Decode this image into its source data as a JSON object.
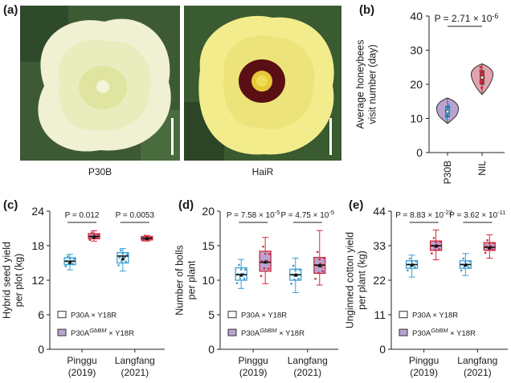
{
  "panels": {
    "a": "(a)",
    "b": "(b)",
    "c": "(c)",
    "d": "(d)",
    "e": "(e)"
  },
  "photos": [
    {
      "caption": "P30B",
      "petal": "#eeeecb",
      "center": "#dfe4a0",
      "bg": "#3d5a35"
    },
    {
      "caption": "HaiR",
      "petal": "#f1ea82",
      "center": "#5a0f15",
      "bg": "#3a5a30"
    }
  ],
  "colors": {
    "blue": "#3a9fd2",
    "red": "#d42a3b",
    "purple": "#b9a3d0",
    "violin_red": "#e2a2ae"
  },
  "chart_data": [
    {
      "type": "violin",
      "ylabel": "Average honeybees\nvisit number (day)",
      "ylim": [
        0,
        40
      ],
      "yticks": [
        "0",
        "10",
        "20",
        "30",
        "40"
      ],
      "categories": [
        "P30B",
        "NIL"
      ],
      "p_value": {
        "text": "P = 2.71 × 10",
        "sup": "-6"
      },
      "series": [
        {
          "name": "P30B",
          "median": 12,
          "q1": 10.5,
          "q3": 13.5,
          "min": 8.5,
          "max": 16,
          "points": [
            10,
            11,
            12,
            13,
            14,
            12.5,
            11.5
          ]
        },
        {
          "name": "NIL",
          "median": 22,
          "q1": 20,
          "q3": 24,
          "min": 17,
          "max": 26,
          "points": [
            19,
            21,
            22,
            23,
            24,
            25,
            20.5
          ]
        }
      ]
    },
    {
      "type": "box",
      "ylabel": "Hybrid seed yield\nper plot (kg)",
      "ylim": [
        0,
        24
      ],
      "yticks": [
        "0",
        "6",
        "12",
        "18",
        "24"
      ],
      "categories": [
        "Pinggu\n(2019)",
        "Langfang\n(2021)"
      ],
      "p_values": [
        "P = 0.012",
        "P = 0.0053"
      ],
      "legend": [
        "P30A × Y18R",
        "P30A",
        "GbBM",
        " × Y18R"
      ],
      "series": [
        {
          "name": "P30A × Y18R",
          "groups": [
            {
              "median": 15.3,
              "q1": 14.7,
              "q3": 15.9,
              "min": 13.8,
              "max": 16.5,
              "mean": 15.2
            },
            {
              "median": 16.2,
              "q1": 15.0,
              "q3": 16.8,
              "min": 13.6,
              "max": 17.5,
              "mean": 15.8
            }
          ]
        },
        {
          "name": "P30A GbBM × Y18R",
          "groups": [
            {
              "median": 19.6,
              "q1": 19.2,
              "q3": 20.1,
              "min": 18.8,
              "max": 20.6,
              "mean": 19.6
            },
            {
              "median": 19.3,
              "q1": 19.0,
              "q3": 19.6,
              "min": 18.8,
              "max": 19.8,
              "mean": 19.3
            }
          ]
        }
      ]
    },
    {
      "type": "box",
      "ylabel": "Number of bolls\nper plant",
      "ylim": [
        0,
        20
      ],
      "yticks": [
        "0",
        "5",
        "10",
        "15",
        "20"
      ],
      "categories": [
        "Pinggu\n(2019)",
        "Langfang\n(2021)"
      ],
      "p_values": [
        {
          "text": "P = 7.58 × 10",
          "sup": "-5"
        },
        {
          "text": "P = 4.75 × 10",
          "sup": "-5"
        }
      ],
      "legend": [
        "P30A × Y18R",
        "P30A",
        "GbBM",
        " × Y18R"
      ],
      "series": [
        {
          "name": "P30A × Y18R",
          "groups": [
            {
              "median": 10.8,
              "q1": 10.0,
              "q3": 11.8,
              "min": 8.8,
              "max": 13.0,
              "mean": 10.8
            },
            {
              "median": 10.8,
              "q1": 10.0,
              "q3": 11.6,
              "min": 8.2,
              "max": 13.2,
              "mean": 10.8
            }
          ]
        },
        {
          "name": "P30A GbBM × Y18R",
          "groups": [
            {
              "median": 12.6,
              "q1": 11.3,
              "q3": 14.2,
              "min": 9.5,
              "max": 16.2,
              "mean": 12.7
            },
            {
              "median": 12.2,
              "q1": 11.0,
              "q3": 13.3,
              "min": 9.3,
              "max": 17.2,
              "mean": 12.2
            }
          ]
        }
      ]
    },
    {
      "type": "box",
      "ylabel": "Unginned cotton yield\nper plant (kg)",
      "ylim": [
        0,
        44
      ],
      "yticks": [
        "0",
        "11",
        "22",
        "33",
        "44"
      ],
      "categories": [
        "Pinggu\n(2019)",
        "Langfang\n(2021)"
      ],
      "p_values": [
        {
          "text": "P = 8.83 × 10",
          "sup": "-22"
        },
        {
          "text": "P = 3.62 × 10",
          "sup": "-11"
        }
      ],
      "legend": [
        "P30A × Y18R",
        "P30A",
        "GbBM",
        " × Y18R"
      ],
      "series": [
        {
          "name": "P30A × Y18R",
          "groups": [
            {
              "median": 27,
              "q1": 25.8,
              "q3": 28.2,
              "min": 23,
              "max": 30,
              "mean": 27
            },
            {
              "median": 27,
              "q1": 25.8,
              "q3": 28.2,
              "min": 23.5,
              "max": 30.5,
              "mean": 27
            }
          ]
        },
        {
          "name": "P30A GbBM × Y18R",
          "groups": [
            {
              "median": 33,
              "q1": 31.5,
              "q3": 34.5,
              "min": 28.5,
              "max": 38,
              "mean": 33
            },
            {
              "median": 32.5,
              "q1": 31.5,
              "q3": 34,
              "min": 29,
              "max": 36.5,
              "mean": 32.5
            }
          ]
        }
      ]
    }
  ]
}
